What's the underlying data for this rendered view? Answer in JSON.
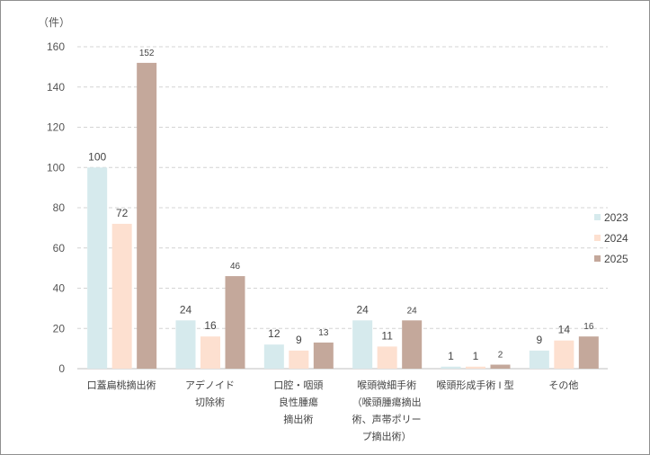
{
  "chart_data": {
    "type": "bar",
    "unit_label": "（件）",
    "ylim": [
      0,
      160
    ],
    "yticks": [
      0,
      20,
      40,
      60,
      80,
      100,
      120,
      140,
      160
    ],
    "grid": true,
    "legend_position": "right",
    "categories": [
      [
        "口蓋扁桃摘出術"
      ],
      [
        "アデノイド",
        "切除術"
      ],
      [
        "口腔・咽頭",
        "良性腫瘍",
        "摘出術"
      ],
      [
        "喉頭微細手術",
        "（喉頭腫瘍摘出",
        "術、声帯ポリー",
        "プ摘出術）"
      ],
      [
        "喉頭形成手術 I 型"
      ],
      [
        "その他"
      ]
    ],
    "series": [
      {
        "name": "2023",
        "color": "#d6eaed",
        "values": [
          100,
          24,
          12,
          24,
          1,
          9
        ]
      },
      {
        "name": "2024",
        "color": "#fde0d0",
        "values": [
          72,
          16,
          9,
          11,
          1,
          14
        ]
      },
      {
        "name": "2025",
        "color": "#c4a89b",
        "values": [
          152,
          46,
          13,
          24,
          2,
          16
        ]
      }
    ]
  }
}
